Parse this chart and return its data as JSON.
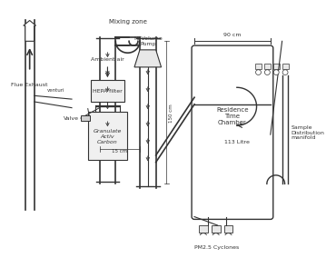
{
  "title": "",
  "bg_color": "#ffffff",
  "line_color": "#333333",
  "labels": {
    "ambient_air": "Ambient air",
    "hepa_filter": "HEPA filter",
    "valve": "Valve",
    "granulate": "Granulate\nActiv\nCarbon",
    "hi_volume_pump": "Hi-Volume\nPump",
    "flue_exhaust": "Flue Exhaust",
    "venturi": "venturi",
    "mixing_zone": "Mixing zone",
    "residence_time": "Residence\nTime\nChamber",
    "pm25_cyclones": "PM2.5 Cyclones",
    "sample_dist": "Sample\nDistribution\nmanifold",
    "dim_90cm": "90 cm",
    "dim_15cm": "15 cm",
    "dim_150cm": "150 cm",
    "dim_113L": "113 Litre"
  }
}
